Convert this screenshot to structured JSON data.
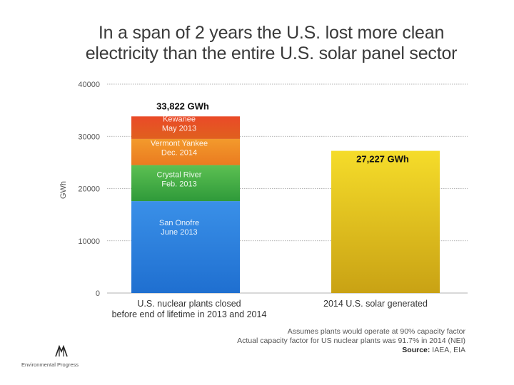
{
  "title": {
    "line1": "In a span of 2 years the U.S. lost more clean",
    "line2": "electricity than the entire U.S. solar panel sector"
  },
  "chart_data": {
    "type": "bar",
    "stacked": true,
    "title": "In a span of 2 years the U.S. lost more clean electricity than the entire U.S. solar panel sector",
    "ylabel": "GWh",
    "xlabel": "",
    "ylim": [
      0,
      40000
    ],
    "yticks": [
      "0",
      "10000",
      "20000",
      "30000",
      "40000"
    ],
    "grid": true,
    "categories": [
      [
        "U.S. nuclear plants closed",
        "before end of lifetime in 2013 and 2014"
      ],
      [
        "2014 U.S. solar generated"
      ]
    ],
    "bars": [
      {
        "total_label": "33,822 GWh",
        "segments": [
          {
            "name": [
              "San Onofre",
              "June 2013"
            ],
            "value": 17600,
            "color": "#3a8de0"
          },
          {
            "name": [
              "Crystal River",
              "Feb. 2013"
            ],
            "value": 6900,
            "color": "#4fb050"
          },
          {
            "name": [
              "Vermont Yankee",
              "Dec. 2014"
            ],
            "value": 5000,
            "color": "#f0932a"
          },
          {
            "name": [
              "Kewanee",
              "May 2013"
            ],
            "value": 4322,
            "color": "#e8442a"
          }
        ]
      },
      {
        "total_label": "27,227 GWh",
        "segments": [
          {
            "name": [],
            "value": 27227,
            "color": "#e8c020"
          }
        ]
      }
    ]
  },
  "notes": {
    "line1": "Assumes plants would operate at 90% capacity factor",
    "line2": "Actual capacity factor for US nuclear plants was 91.7% in 2014 (NEI)",
    "source_label": "Source:",
    "source_value": " IAEA, EIA"
  },
  "logo": {
    "label": "Environmental Progress"
  }
}
